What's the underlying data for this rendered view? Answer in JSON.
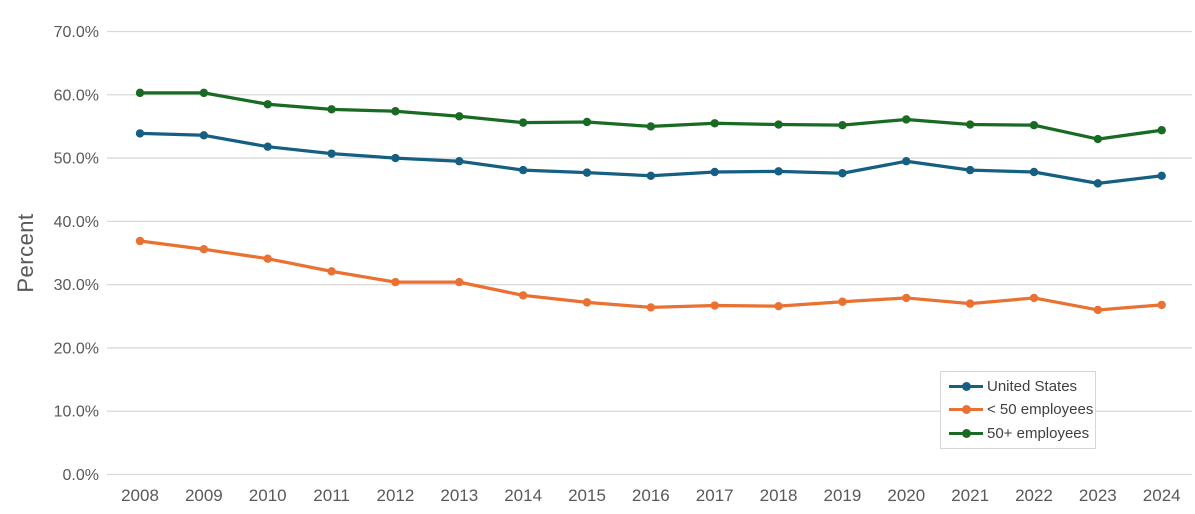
{
  "chart": {
    "y_axis_title": "Percent",
    "y_tick_labels": [
      "0.0%",
      "10.0%",
      "20.0%",
      "30.0%",
      "40.0%",
      "50.0%",
      "60.0%",
      "70.0%"
    ],
    "x_tick_labels": [
      "2008",
      "2009",
      "2010",
      "2011",
      "2012",
      "2013",
      "2014",
      "2015",
      "2016",
      "2017",
      "2018",
      "2019",
      "2020",
      "2021",
      "2022",
      "2023",
      "2024"
    ],
    "colors": {
      "gridline": "#d9d9d9",
      "tick_label": "#595959",
      "axis_title": "#595959",
      "legend_text": "#404040",
      "legend_border": "#d6d6d6",
      "background": "#ffffff"
    }
  },
  "chart_data": {
    "type": "line",
    "title": "",
    "xlabel": "",
    "ylabel": "Percent",
    "ylim": [
      0,
      70
    ],
    "y_tick_step": 10,
    "grid": true,
    "legend_position": "bottom-right",
    "markers": true,
    "x": [
      2008,
      2009,
      2010,
      2011,
      2012,
      2013,
      2014,
      2015,
      2016,
      2017,
      2018,
      2019,
      2020,
      2021,
      2022,
      2023,
      2024
    ],
    "series": [
      {
        "name": "United States",
        "color": "#156082",
        "values": [
          53.9,
          53.6,
          51.8,
          50.7,
          50.0,
          49.5,
          48.1,
          47.7,
          47.2,
          47.8,
          47.9,
          47.6,
          49.5,
          48.1,
          47.8,
          46.0,
          47.2
        ]
      },
      {
        "name": "< 50 employees",
        "color": "#E97132",
        "values": [
          36.9,
          35.6,
          34.1,
          32.1,
          30.4,
          30.4,
          28.3,
          27.2,
          26.4,
          26.7,
          26.6,
          27.3,
          27.9,
          27.0,
          27.9,
          26.0,
          26.8
        ]
      },
      {
        "name": "50+ employees",
        "color": "#196B24",
        "values": [
          60.3,
          60.3,
          58.5,
          57.7,
          57.4,
          56.6,
          55.6,
          55.7,
          55.0,
          55.5,
          55.3,
          55.2,
          56.1,
          55.3,
          55.2,
          53.0,
          54.4
        ]
      }
    ]
  }
}
